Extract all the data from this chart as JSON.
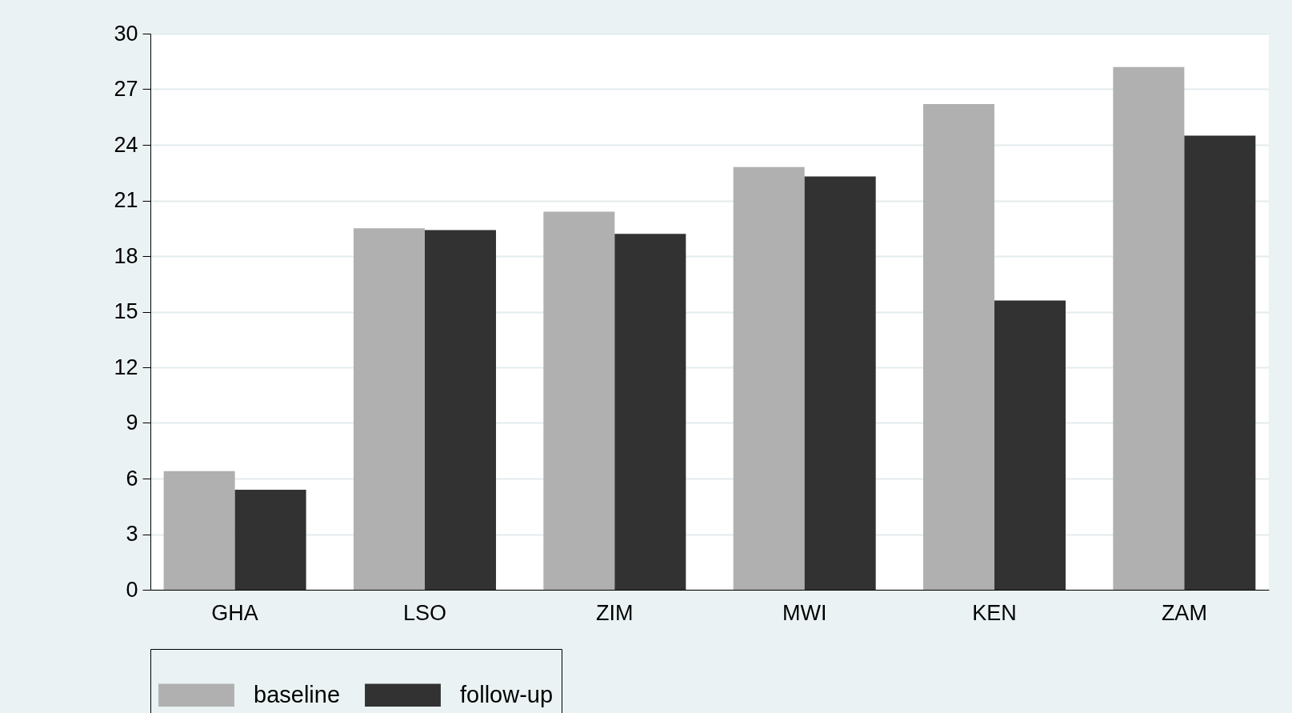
{
  "chart_data": {
    "type": "bar",
    "categories": [
      "GHA",
      "LSO",
      "ZIM",
      "MWI",
      "KEN",
      "ZAM"
    ],
    "series": [
      {
        "name": "baseline",
        "color": "#b0b0b0",
        "values": [
          6.4,
          19.5,
          20.4,
          22.8,
          26.2,
          28.2
        ]
      },
      {
        "name": "follow-up",
        "color": "#323232",
        "values": [
          5.4,
          19.4,
          19.2,
          22.3,
          15.6,
          24.5
        ]
      }
    ],
    "ylim": [
      0,
      30
    ],
    "yticks": [
      0,
      3,
      6,
      9,
      12,
      15,
      18,
      21,
      24,
      27,
      30
    ],
    "grid": "y",
    "legend": "bottom"
  }
}
